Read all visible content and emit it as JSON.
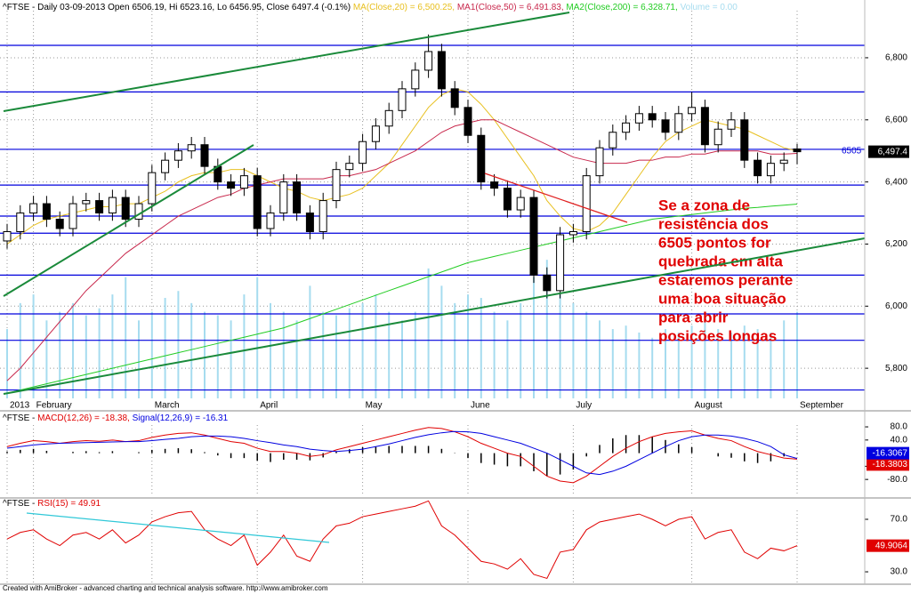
{
  "chart_data": [
    {
      "type": "candlestick",
      "title": "^FTSE - Daily 03-09-2013 Open 6506.19, Hi 6523.16, Lo 6456.95, Close 6497.4 (-0.1%)",
      "categories": [
        "2013",
        null,
        "February",
        null,
        null,
        null,
        null,
        null,
        null,
        null,
        null,
        "March",
        null,
        null,
        null,
        null,
        null,
        null,
        null,
        "April",
        null,
        null,
        null,
        null,
        null,
        null,
        null,
        "May",
        null,
        null,
        null,
        null,
        null,
        null,
        null,
        "June",
        null,
        null,
        null,
        null,
        null,
        null,
        null,
        "July",
        null,
        null,
        null,
        null,
        null,
        null,
        null,
        null,
        "August",
        null,
        null,
        null,
        null,
        null,
        null,
        null,
        "September"
      ],
      "open": [
        6210,
        6240,
        6300,
        6330,
        6280,
        6250,
        6330,
        6340,
        6300,
        6350,
        6280,
        6330,
        6430,
        6470,
        6500,
        6520,
        6450,
        6400,
        6380,
        6420,
        6250,
        6300,
        6400,
        6300,
        6240,
        6340,
        6440,
        6460,
        6530,
        6580,
        6630,
        6700,
        6760,
        6820,
        6700,
        6640,
        6550,
        6400,
        6380,
        6310,
        6350,
        6100,
        6050,
        6230,
        6240,
        6420,
        6510,
        6560,
        6590,
        6620,
        6600,
        6560,
        6620,
        6640,
        6520,
        6570,
        6600,
        6470,
        6420,
        6460,
        6506.19
      ],
      "high": [
        6265,
        6325,
        6355,
        6355,
        6305,
        6355,
        6365,
        6365,
        6375,
        6375,
        6355,
        6455,
        6495,
        6525,
        6545,
        6545,
        6475,
        6425,
        6445,
        6445,
        6325,
        6425,
        6425,
        6325,
        6365,
        6465,
        6485,
        6555,
        6605,
        6655,
        6725,
        6785,
        6875,
        6845,
        6725,
        6665,
        6575,
        6425,
        6405,
        6375,
        6375,
        6125,
        6255,
        6265,
        6445,
        6535,
        6585,
        6615,
        6645,
        6645,
        6625,
        6645,
        6690,
        6665,
        6595,
        6625,
        6625,
        6495,
        6485,
        6495,
        6523.16
      ],
      "low": [
        6185,
        6215,
        6275,
        6255,
        6225,
        6225,
        6305,
        6275,
        6275,
        6255,
        6255,
        6305,
        6405,
        6445,
        6475,
        6425,
        6375,
        6355,
        6355,
        6225,
        6225,
        6275,
        6275,
        6215,
        6215,
        6315,
        6415,
        6435,
        6505,
        6555,
        6605,
        6675,
        6735,
        6675,
        6615,
        6525,
        6375,
        6355,
        6285,
        6285,
        6075,
        6025,
        6025,
        6205,
        6215,
        6395,
        6485,
        6535,
        6565,
        6575,
        6535,
        6535,
        6595,
        6495,
        6495,
        6545,
        6445,
        6395,
        6395,
        6435,
        6456.95
      ],
      "close": [
        6240,
        6300,
        6330,
        6280,
        6250,
        6330,
        6340,
        6300,
        6350,
        6280,
        6330,
        6430,
        6470,
        6500,
        6520,
        6450,
        6400,
        6380,
        6420,
        6250,
        6300,
        6400,
        6300,
        6240,
        6340,
        6440,
        6460,
        6530,
        6580,
        6630,
        6700,
        6760,
        6820,
        6700,
        6640,
        6550,
        6400,
        6380,
        6310,
        6350,
        6100,
        6050,
        6230,
        6240,
        6420,
        6510,
        6560,
        6590,
        6620,
        6600,
        6560,
        6620,
        6640,
        6520,
        6570,
        6600,
        6470,
        6420,
        6460,
        6470,
        6497.4
      ],
      "last_close_label": "6,497.4",
      "up_color": "#ffffff",
      "down_color": "#000000",
      "series": [
        {
          "name": "MA(Close,20) = 6,500.25,",
          "color": "#e8c020",
          "values": [
            6200,
            6230,
            6260,
            6280,
            6290,
            6300,
            6310,
            6320,
            6320,
            6330,
            6330,
            6350,
            6370,
            6400,
            6420,
            6430,
            6430,
            6440,
            6440,
            6420,
            6400,
            6380,
            6370,
            6350,
            6340,
            6350,
            6360,
            6380,
            6420,
            6460,
            6520,
            6580,
            6640,
            6680,
            6700,
            6690,
            6650,
            6600,
            6540,
            6480,
            6420,
            6340,
            6290,
            6250,
            6240,
            6260,
            6300,
            6360,
            6420,
            6480,
            6530,
            6560,
            6580,
            6600,
            6590,
            6580,
            6570,
            6550,
            6530,
            6510,
            6500.25
          ]
        },
        {
          "name": "MA1(Close,50) = 6,491.83,",
          "color": "#c8284c",
          "values": [
            5760,
            5800,
            5850,
            5900,
            5950,
            6000,
            6050,
            6090,
            6130,
            6170,
            6200,
            6230,
            6260,
            6290,
            6310,
            6330,
            6350,
            6360,
            6380,
            6390,
            6400,
            6410,
            6410,
            6410,
            6410,
            6420,
            6420,
            6430,
            6440,
            6460,
            6480,
            6500,
            6530,
            6560,
            6580,
            6590,
            6600,
            6600,
            6580,
            6560,
            6540,
            6520,
            6500,
            6480,
            6470,
            6460,
            6460,
            6460,
            6470,
            6470,
            6480,
            6480,
            6490,
            6490,
            6500,
            6500,
            6500,
            6500,
            6490,
            6490,
            6491.83
          ]
        },
        {
          "name": "MA2(Close,200) = 6,328.71,",
          "color": "#22cc22",
          "values": [
            5720,
            5730,
            5740,
            5750,
            5760,
            5770,
            5780,
            5790,
            5800,
            5810,
            5820,
            5830,
            5840,
            5850,
            5860,
            5870,
            5880,
            5890,
            5900,
            5910,
            5920,
            5930,
            5945,
            5960,
            5975,
            5990,
            6005,
            6020,
            6035,
            6050,
            6065,
            6080,
            6095,
            6110,
            6125,
            6140,
            6150,
            6160,
            6170,
            6180,
            6190,
            6200,
            6210,
            6220,
            6230,
            6240,
            6250,
            6260,
            6270,
            6280,
            6285,
            6290,
            6295,
            6300,
            6305,
            6310,
            6315,
            6318,
            6322,
            6325,
            6328.71
          ]
        }
      ],
      "volume": {
        "name": "Volume = 0.00",
        "color": "#a6dcef",
        "ylim": [
          0,
          230
        ],
        "values": [
          40,
          55,
          60,
          45,
          50,
          55,
          48,
          52,
          60,
          70,
          45,
          50,
          58,
          62,
          55,
          50,
          48,
          45,
          60,
          70,
          55,
          50,
          45,
          65,
          50,
          48,
          52,
          55,
          60,
          50,
          45,
          50,
          75,
          65,
          55,
          60,
          58,
          50,
          45,
          55,
          70,
          80,
          60,
          55,
          50,
          45,
          40,
          42,
          38,
          35,
          40,
          38,
          42,
          45,
          40,
          38,
          42,
          40,
          38,
          45,
          50
        ]
      },
      "ylim": [
        5703,
        6986
      ],
      "yticks": [
        {
          "value": 5800,
          "label": "5,800"
        },
        {
          "value": 6000,
          "label": "6,000"
        },
        {
          "value": 6200,
          "label": "6,200"
        },
        {
          "value": 6400,
          "label": "6,400"
        },
        {
          "value": 6600,
          "label": "6,600"
        },
        {
          "value": 6800,
          "label": "6,800"
        }
      ],
      "grid": true,
      "levels": [
        6840,
        6690,
        6505,
        6390,
        6290,
        6235,
        6100,
        5975,
        5890,
        5730
      ],
      "level_color": "#0000dd",
      "annotation": [
        "Se a zona de",
        "resistência dos",
        "6505 pontos for",
        "quebrada em alta",
        "estaremos perante",
        "uma boa situação",
        "para abrir",
        "posições longas"
      ]
    },
    {
      "type": "line",
      "title": "^FTSE -",
      "series": [
        {
          "name": "MACD(12,26) = -18.38,",
          "color": "#e00000",
          "last_label": "-18.3803",
          "values": [
            20,
            30,
            38,
            35,
            30,
            35,
            38,
            36,
            40,
            35,
            38,
            48,
            55,
            60,
            62,
            55,
            45,
            35,
            30,
            15,
            5,
            5,
            0,
            -10,
            -5,
            10,
            20,
            30,
            40,
            50,
            60,
            70,
            78,
            75,
            65,
            50,
            30,
            15,
            0,
            -10,
            -40,
            -70,
            -85,
            -90,
            -70,
            -40,
            -10,
            15,
            35,
            50,
            60,
            65,
            68,
            55,
            45,
            38,
            20,
            5,
            -5,
            -15,
            -18.38
          ]
        },
        {
          "name": "Signal(12,26,9) = -16.31",
          "color": "#0000e0",
          "last_label": "-16.3067",
          "values": [
            15,
            20,
            25,
            28,
            30,
            31,
            32,
            33,
            34,
            35,
            35,
            38,
            42,
            45,
            50,
            52,
            52,
            50,
            45,
            38,
            32,
            25,
            20,
            12,
            8,
            5,
            8,
            12,
            20,
            28,
            38,
            48,
            56,
            62,
            66,
            65,
            60,
            50,
            40,
            30,
            15,
            0,
            -20,
            -40,
            -60,
            -65,
            -55,
            -40,
            -20,
            0,
            20,
            38,
            50,
            55,
            55,
            52,
            45,
            35,
            20,
            -5,
            -16.31
          ]
        }
      ],
      "histogram": {
        "color": "#000000",
        "values": [
          5,
          10,
          13,
          7,
          0,
          4,
          6,
          3,
          6,
          0,
          3,
          10,
          13,
          15,
          12,
          3,
          -7,
          -15,
          -15,
          -23,
          -27,
          -20,
          -20,
          -22,
          -13,
          5,
          12,
          18,
          20,
          22,
          22,
          22,
          22,
          13,
          -1,
          -15,
          -30,
          -35,
          -40,
          -40,
          -55,
          -70,
          -65,
          -50,
          -10,
          25,
          45,
          55,
          55,
          50,
          40,
          27,
          18,
          0,
          -10,
          -14,
          -25,
          -30,
          -25,
          -10,
          -2.07
        ]
      },
      "ylim": [
        -131,
        118
      ],
      "yticks": [
        {
          "value": 80,
          "label": "80.0"
        },
        {
          "value": 40,
          "label": "40.0"
        },
        {
          "value": -40,
          "label": "-40.0"
        },
        {
          "value": -80,
          "label": "-80.0"
        }
      ]
    },
    {
      "type": "line",
      "title": "^FTSE -",
      "series": [
        {
          "name": "RSI(15) = 49.91",
          "color": "#e00000",
          "last_label": "49.9064",
          "values": [
            55,
            60,
            62,
            55,
            50,
            58,
            60,
            55,
            62,
            52,
            58,
            68,
            72,
            75,
            76,
            62,
            55,
            50,
            58,
            35,
            45,
            58,
            42,
            38,
            55,
            65,
            67,
            72,
            74,
            76,
            78,
            80,
            84,
            65,
            58,
            48,
            38,
            36,
            32,
            40,
            28,
            25,
            45,
            47,
            62,
            68,
            70,
            72,
            74,
            70,
            65,
            70,
            72,
            55,
            60,
            62,
            45,
            40,
            48,
            46,
            49.91
          ]
        }
      ],
      "ylim": [
        21.9,
        84.9
      ],
      "yticks": [
        {
          "value": 30,
          "label": "30.0"
        },
        {
          "value": 70,
          "label": "70.0"
        }
      ]
    }
  ],
  "footer": "Created with AmiBroker - advanced charting and technical analysis software. http://www.amibroker.com"
}
